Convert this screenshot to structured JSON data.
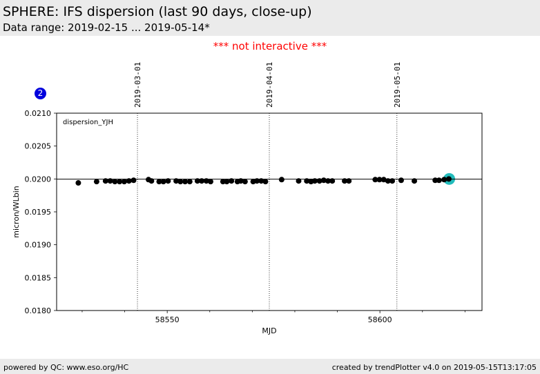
{
  "header": {
    "title": "SPHERE: IFS dispersion (last 90 days, close-up)",
    "subtitle": "Data range: 2019-02-15 ... 2019-05-14*"
  },
  "notice": "*** not interactive ***",
  "badge": "2",
  "footer": {
    "left": "powered by QC: www.eso.org/HC",
    "right": "created by trendPlotter v4.0 on 2019-05-15T13:17:05"
  },
  "colors": {
    "point": "#000000",
    "highlight": "#22bbbb",
    "badge": "#0000dd",
    "notice": "#ff0000"
  },
  "chart_data": {
    "type": "scatter",
    "xlabel": "MJD",
    "ylabel": "micron/WLbin",
    "panel_label": "dispersion_YJH",
    "xlim": [
      58524,
      58624
    ],
    "ylim": [
      0.018,
      0.021
    ],
    "x_ticks": [
      58550,
      58600
    ],
    "y_ticks": [
      "0.0180",
      "0.0185",
      "0.0190",
      "0.0195",
      "0.0200",
      "0.0205",
      "0.0210"
    ],
    "reference_line": 0.019997,
    "date_markers": [
      {
        "label": "2019-03-01",
        "mjd": 58543
      },
      {
        "label": "2019-04-01",
        "mjd": 58574
      },
      {
        "label": "2019-05-01",
        "mjd": 58604
      }
    ],
    "series": [
      {
        "x": [
          58529.1,
          58533.4,
          58535.5,
          58536.6,
          58537.7,
          58538.8,
          58539.9,
          58541.0,
          58542.1,
          58545.6,
          58546.3,
          58548.1,
          58549.1,
          58550.2,
          58552.1,
          58553.1,
          58554.2,
          58555.3,
          58557.1,
          58558.1,
          58559.2,
          58560.2,
          58563.1,
          58564.0,
          58565.1,
          58566.5,
          58567.3,
          58568.3,
          58570.2,
          58571.1,
          58572.1,
          58573.1,
          58576.9,
          58580.9,
          58582.8,
          58583.8,
          58584.7,
          58585.8,
          58586.8,
          58587.8,
          58588.8,
          58591.7,
          58592.7,
          58598.9,
          58599.9,
          58600.9,
          58601.9,
          58602.9,
          58605.0,
          58608.1,
          58613.0,
          58613.9,
          58615.1,
          58616.2
        ],
        "y": [
          0.01994,
          0.01996,
          0.01997,
          0.01997,
          0.01996,
          0.01996,
          0.01996,
          0.01997,
          0.01998,
          0.01999,
          0.01997,
          0.01996,
          0.01996,
          0.01997,
          0.01997,
          0.01996,
          0.01996,
          0.01996,
          0.01997,
          0.01997,
          0.01997,
          0.01996,
          0.01996,
          0.01996,
          0.01997,
          0.01996,
          0.01997,
          0.01996,
          0.01996,
          0.01997,
          0.01997,
          0.01996,
          0.01999,
          0.01997,
          0.01997,
          0.01996,
          0.01997,
          0.01997,
          0.01998,
          0.01997,
          0.01997,
          0.01997,
          0.01997,
          0.01999,
          0.01999,
          0.01999,
          0.01997,
          0.01997,
          0.01998,
          0.01997,
          0.01998,
          0.01998,
          0.01999,
          0.02
        ]
      }
    ],
    "highlight_point": {
      "x": 58616.3,
      "y": 0.02
    }
  }
}
